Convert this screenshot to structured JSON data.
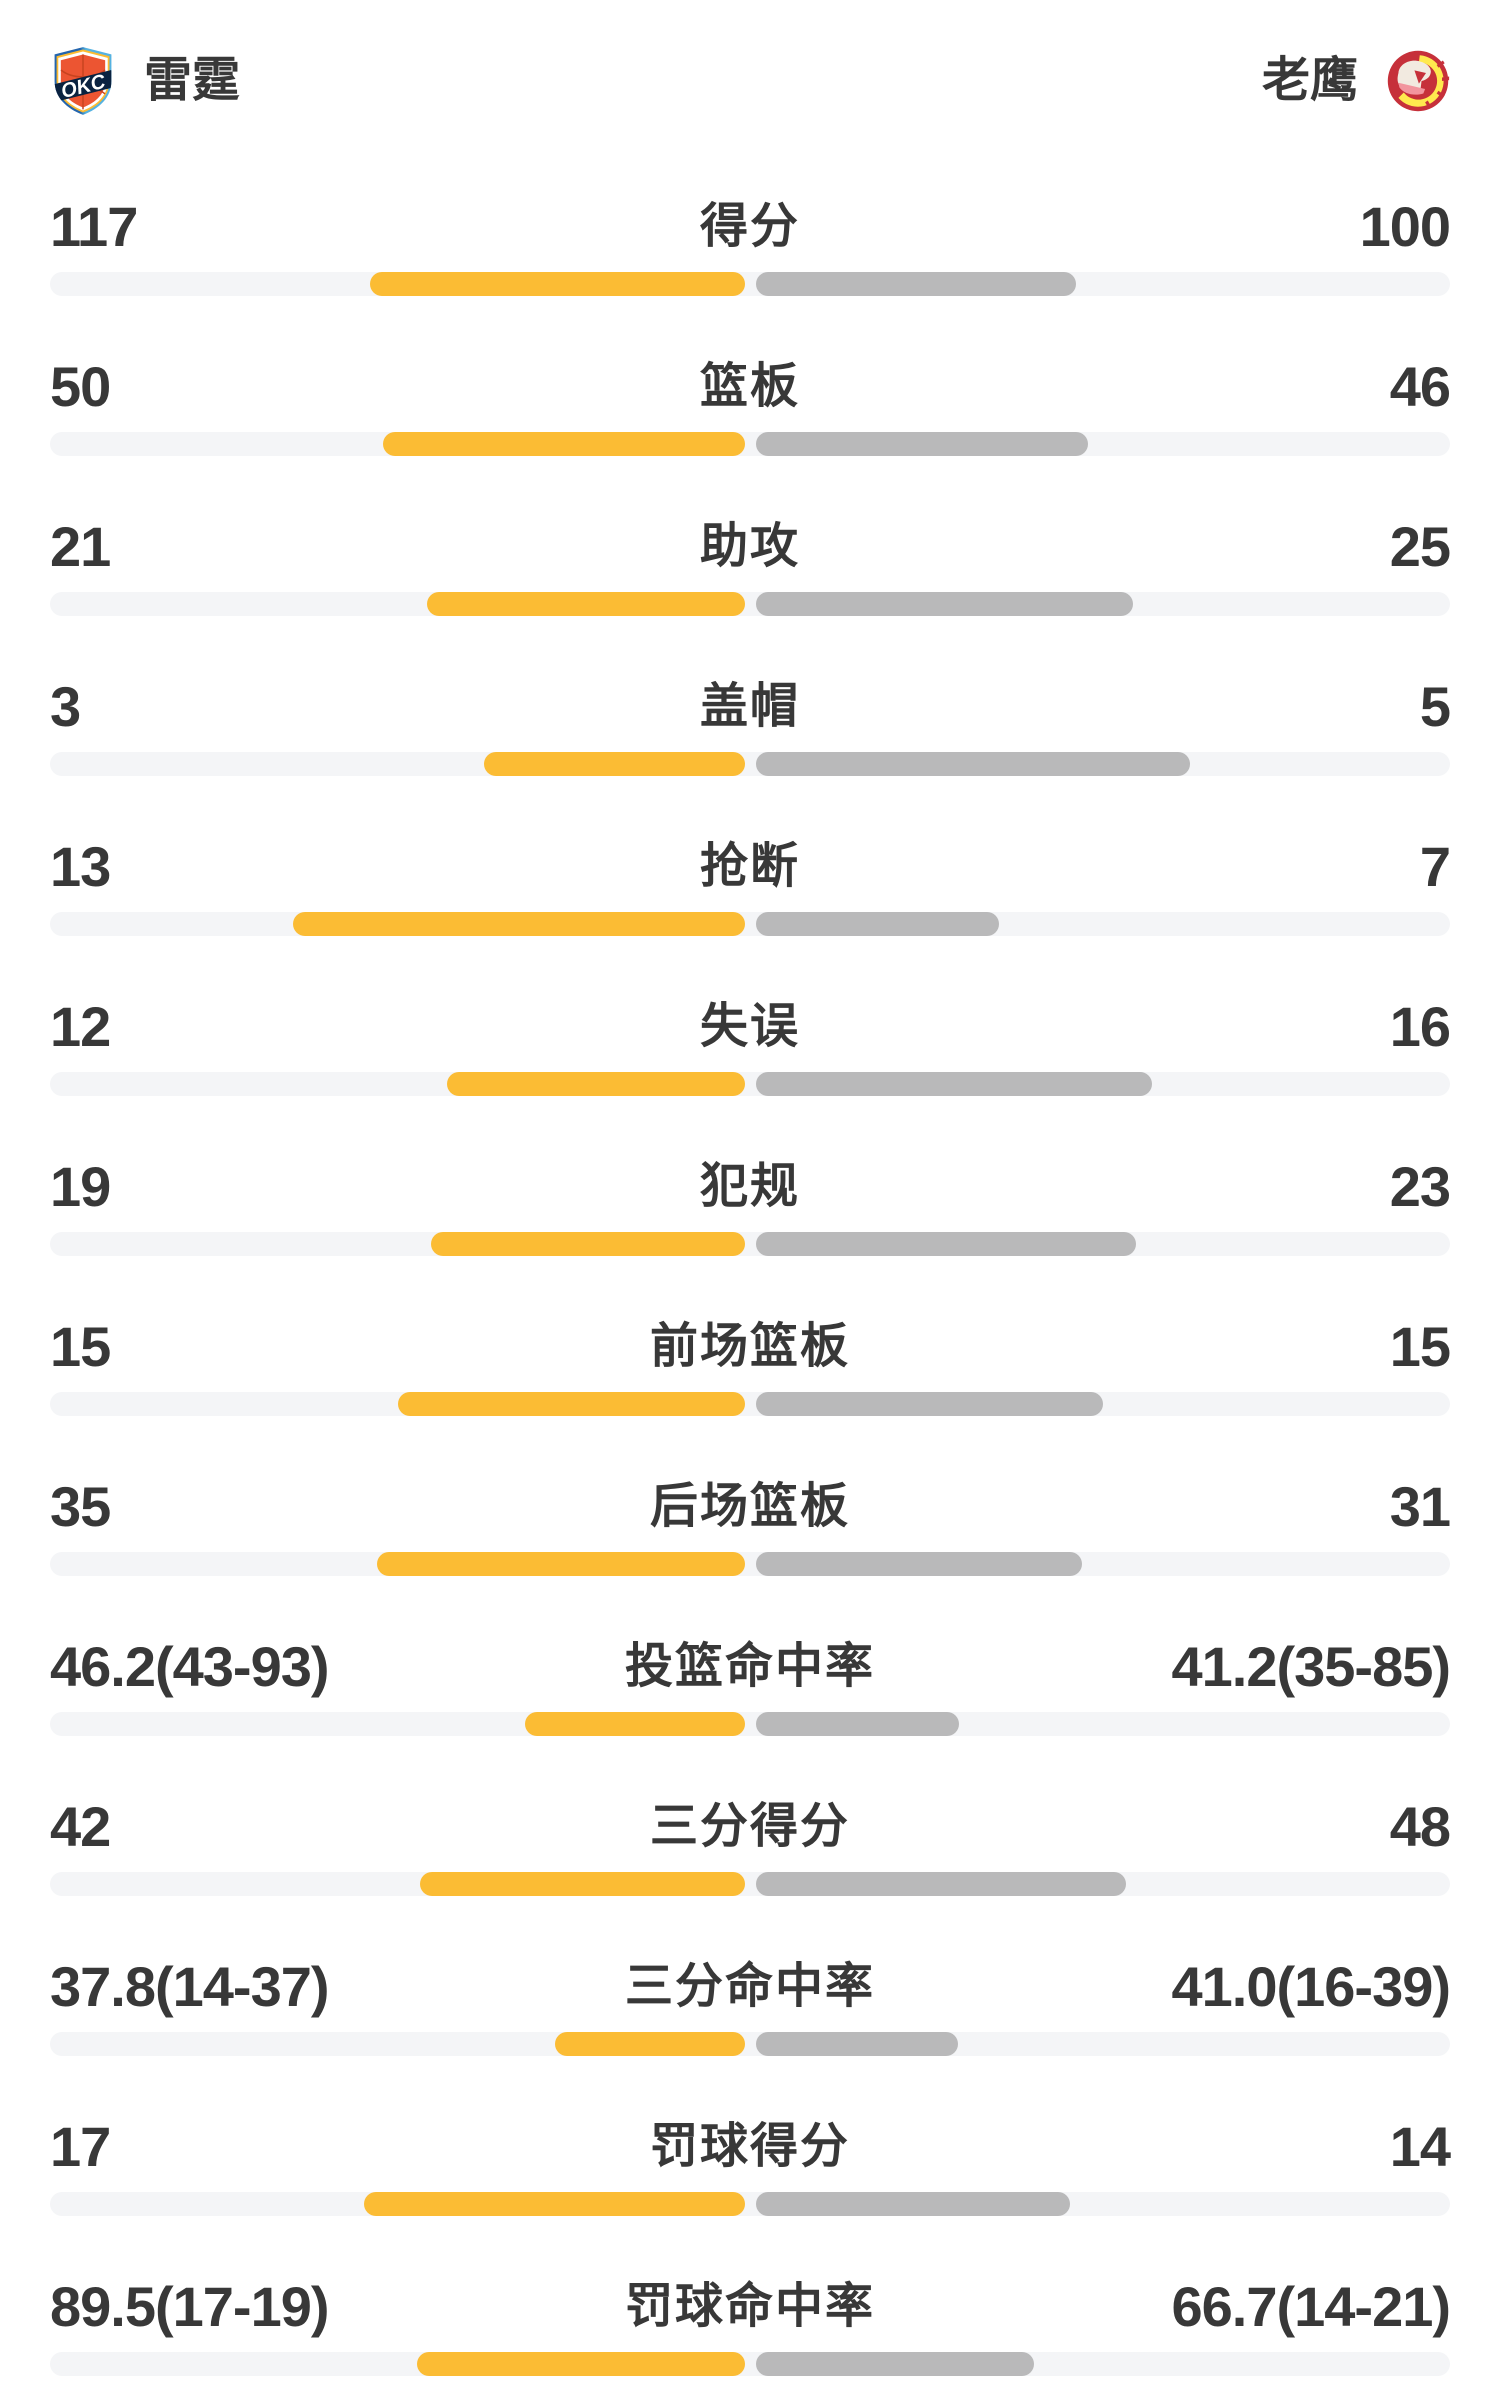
{
  "header": {
    "left_team": {
      "name": "雷霆",
      "logo": "okc-thunder-logo"
    },
    "right_team": {
      "name": "老鹰",
      "logo": "atlanta-hawks-logo"
    }
  },
  "colors": {
    "left_bar": "#FBBC34",
    "right_bar": "#B9B9BA",
    "track": "#F4F5F7",
    "text": "#383838",
    "background": "#FFFFFF",
    "okc_navy": "#0A2240",
    "okc_orange": "#EC5532",
    "okc_blue": "#2365AE",
    "okc_light_blue": "#55B2E1",
    "okc_yellow": "#FDBB30",
    "hawks_red": "#C6303A",
    "hawks_yellow": "#FFE94E",
    "hawks_cream": "#F2EAE0",
    "hawks_pink": "#F2959E"
  },
  "rows": [
    {
      "label": "得分",
      "left": "117",
      "right": "100",
      "left_bar_pct": 53.9,
      "right_bar_pct": 46.1
    },
    {
      "label": "篮板",
      "left": "50",
      "right": "46",
      "left_bar_pct": 52.1,
      "right_bar_pct": 47.9
    },
    {
      "label": "助攻",
      "left": "21",
      "right": "25",
      "left_bar_pct": 45.7,
      "right_bar_pct": 54.3
    },
    {
      "label": "盖帽",
      "left": "3",
      "right": "5",
      "left_bar_pct": 37.5,
      "right_bar_pct": 62.5
    },
    {
      "label": "抢断",
      "left": "13",
      "right": "7",
      "left_bar_pct": 65.0,
      "right_bar_pct": 35.0
    },
    {
      "label": "失误",
      "left": "12",
      "right": "16",
      "left_bar_pct": 42.9,
      "right_bar_pct": 57.1
    },
    {
      "label": "犯规",
      "left": "19",
      "right": "23",
      "left_bar_pct": 45.2,
      "right_bar_pct": 54.8
    },
    {
      "label": "前场篮板",
      "left": "15",
      "right": "15",
      "left_bar_pct": 50.0,
      "right_bar_pct": 50.0
    },
    {
      "label": "后场篮板",
      "left": "35",
      "right": "31",
      "left_bar_pct": 53.0,
      "right_bar_pct": 47.0
    },
    {
      "label": "投篮命中率",
      "left": "46.2(43-93)",
      "right": "41.2(35-85)",
      "left_bar_pct": 31.6,
      "right_bar_pct": 29.2
    },
    {
      "label": "三分得分",
      "left": "42",
      "right": "48",
      "left_bar_pct": 46.7,
      "right_bar_pct": 53.3
    },
    {
      "label": "三分命中率",
      "left": "37.8(14-37)",
      "right": "41.0(16-39)",
      "left_bar_pct": 27.4,
      "right_bar_pct": 29.1
    },
    {
      "label": "罚球得分",
      "left": "17",
      "right": "14",
      "left_bar_pct": 54.8,
      "right_bar_pct": 45.2
    },
    {
      "label": "罚球命中率",
      "left": "89.5(17-19)",
      "right": "66.7(14-21)",
      "left_bar_pct": 47.2,
      "right_bar_pct": 40.0
    }
  ],
  "chart_data": {
    "type": "bar",
    "orientation": "horizontal paired comparison, bars grow outward from center gap",
    "title": "雷霆 vs 老鹰 球队技术统计",
    "categories": [
      "得分",
      "篮板",
      "助攻",
      "盖帽",
      "抢断",
      "失误",
      "犯规",
      "前场篮板",
      "后场篮板",
      "投篮命中率",
      "三分得分",
      "三分命中率",
      "罚球得分",
      "罚球命中率"
    ],
    "series": [
      {
        "name": "雷霆",
        "color": "#FBBC34",
        "values": [
          117,
          50,
          21,
          3,
          13,
          12,
          19,
          15,
          35,
          46.2,
          42,
          37.8,
          17,
          89.5
        ]
      },
      {
        "name": "老鹰",
        "color": "#B9B9BA",
        "values": [
          100,
          46,
          25,
          5,
          7,
          16,
          23,
          15,
          31,
          41.2,
          48,
          41.0,
          14,
          66.7
        ]
      }
    ],
    "shooting_detail": {
      "投篮命中率": {
        "雷霆": "43-93",
        "老鹰": "35-85"
      },
      "三分命中率": {
        "雷霆": "14-37",
        "老鹰": "16-39"
      },
      "罚球命中率": {
        "雷霆": "17-19",
        "老鹰": "14-21"
      }
    },
    "notes": "count rows: bar length = value/(left+right) of half track; percentage rows: bar length = pct/(100+pct) of half track"
  }
}
